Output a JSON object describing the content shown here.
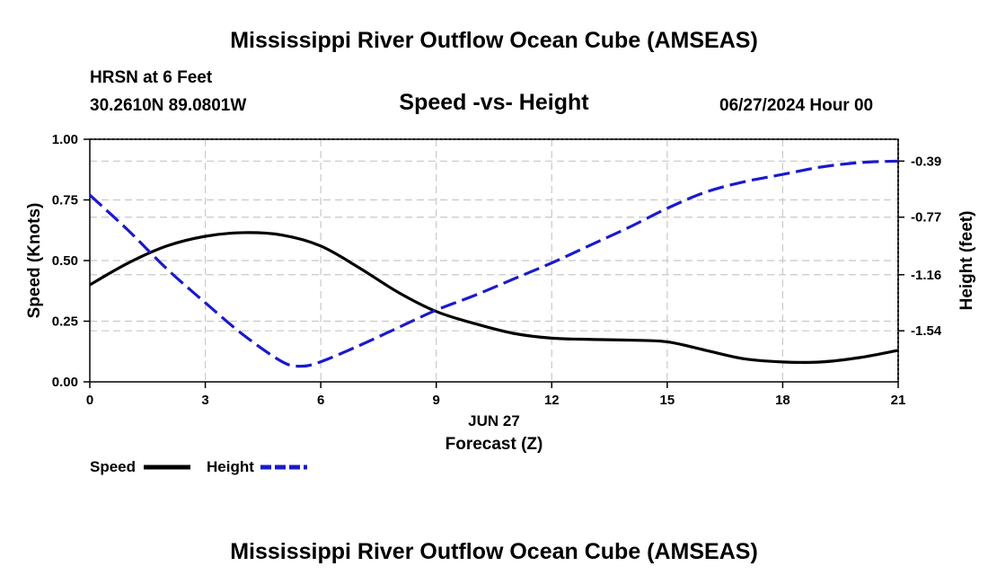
{
  "page": {
    "main_title": "Mississippi River Outflow Ocean Cube (AMSEAS)",
    "footer_title": "Mississippi River Outflow Ocean Cube (AMSEAS)",
    "station": "HRSN at 6 Feet",
    "coords": "30.2610N  89.0801W",
    "datetime": "06/27/2024 Hour 00"
  },
  "chart_data": {
    "type": "line",
    "title": "Speed -vs- Height",
    "xlabel": "Forecast (Z)",
    "xdate_label": "JUN 27",
    "ylabel": "Speed (Knots)",
    "y2label": "Height (feet)",
    "xlim": [
      0,
      21
    ],
    "ylim": [
      0,
      1
    ],
    "y2lim": [
      -1.886,
      -0.242
    ],
    "xticks": [
      0,
      3,
      6,
      9,
      12,
      15,
      18,
      21
    ],
    "xtick_labels": [
      "0",
      "3",
      "6",
      "9",
      "12",
      "15",
      "18",
      "21"
    ],
    "yticks": [
      0,
      0.25,
      0.5,
      0.75,
      1.0
    ],
    "ytick_labels": [
      "0.00",
      "0.25",
      "0.50",
      "0.75",
      "1.00"
    ],
    "y2ticks": [
      -0.39,
      -0.77,
      -1.16,
      -1.54
    ],
    "y2tick_labels": [
      "-0.39",
      "-0.77",
      "-1.16",
      "-1.54"
    ],
    "grid": true,
    "legend_position": "bottom-left",
    "series": [
      {
        "name": "Speed",
        "axis": "left",
        "color": "#000000",
        "style": "solid",
        "x": [
          0,
          1,
          2,
          3,
          4,
          5,
          6,
          7,
          8,
          9,
          10,
          11,
          12,
          13,
          14,
          15,
          16,
          17,
          18,
          19,
          20,
          21
        ],
        "y": [
          0.4,
          0.49,
          0.56,
          0.6,
          0.615,
          0.605,
          0.56,
          0.47,
          0.37,
          0.29,
          0.24,
          0.2,
          0.18,
          0.175,
          0.172,
          0.165,
          0.13,
          0.095,
          0.082,
          0.082,
          0.1,
          0.13
        ]
      },
      {
        "name": "Height",
        "axis": "right",
        "color": "#1a1acc",
        "style": "dashed",
        "x": [
          0,
          1,
          2,
          3,
          4,
          5,
          5.5,
          6,
          7,
          8,
          9,
          10,
          11,
          12,
          13,
          14,
          15,
          16,
          17,
          18,
          19,
          20,
          21
        ],
        "y": [
          -0.62,
          -0.86,
          -1.12,
          -1.35,
          -1.57,
          -1.75,
          -1.78,
          -1.75,
          -1.64,
          -1.52,
          -1.4,
          -1.3,
          -1.19,
          -1.08,
          -0.96,
          -0.84,
          -0.71,
          -0.6,
          -0.53,
          -0.48,
          -0.43,
          -0.4,
          -0.39
        ]
      }
    ]
  }
}
